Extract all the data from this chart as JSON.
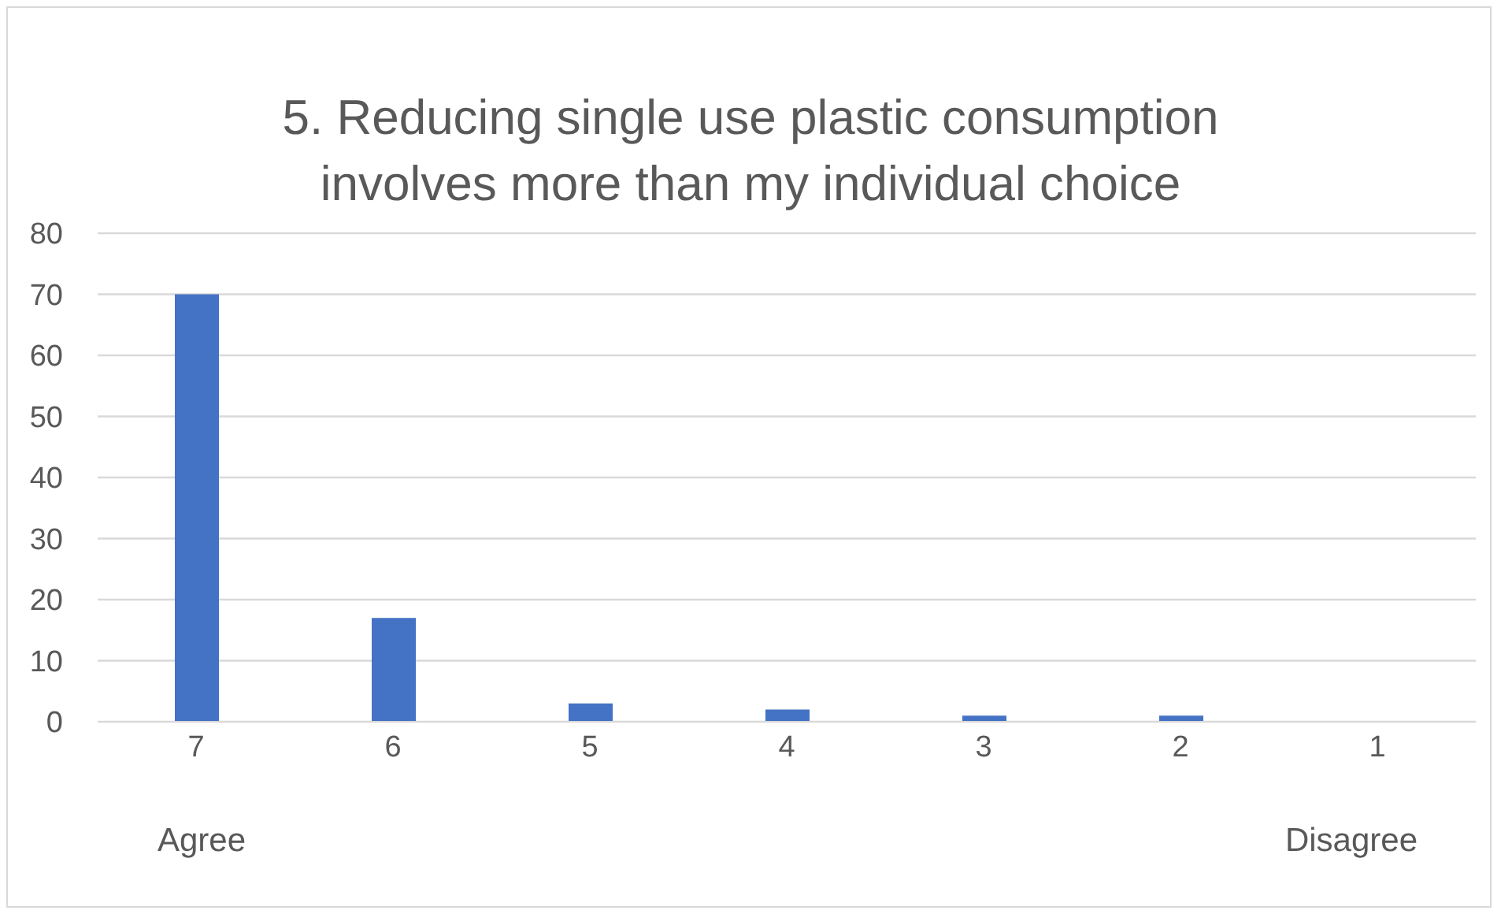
{
  "chart_data": {
    "type": "bar",
    "title": "5. Reducing single use plastic consumption\ninvolves more than my individual choice",
    "categories": [
      "7",
      "6",
      "5",
      "4",
      "3",
      "2",
      "1"
    ],
    "values": [
      70,
      17,
      3,
      2,
      1,
      1,
      0
    ],
    "color": "#4472c4",
    "ylim": [
      0,
      80
    ],
    "yticks": [
      0,
      10,
      20,
      30,
      40,
      50,
      60,
      70,
      80
    ],
    "grid": "y",
    "annotations": [
      "Agree",
      "Disagree"
    ]
  }
}
